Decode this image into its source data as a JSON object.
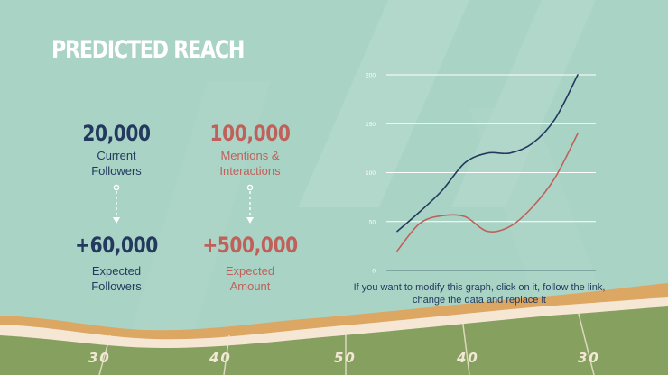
{
  "slide": {
    "title": "PREDICTED REACH",
    "note": "If you want to modify this graph, click on it, follow the link, change the data and replace it"
  },
  "stats": {
    "current_followers": {
      "value": "20,000",
      "label_line1": "Current",
      "label_line2": "Followers"
    },
    "mentions": {
      "value": "100,000",
      "label_line1": "Mentions &",
      "label_line2": "Interactions"
    },
    "expected_followers": {
      "value": "+60,000",
      "label_line1": "Expected",
      "label_line2": "Followers"
    },
    "expected_amount": {
      "value": "+500,000",
      "label_line1": "Expected",
      "label_line2": "Amount"
    }
  },
  "field": {
    "yard_numbers": [
      "30",
      "40",
      "50",
      "40",
      "30"
    ]
  },
  "colors": {
    "background": "#a9d3c5",
    "navy": "#233a5e",
    "coral": "#c0605a",
    "grass": "#86a060",
    "sand": "#dca663",
    "cream": "#f6e6d4"
  },
  "chart_data": {
    "type": "line",
    "ylim": [
      0,
      200
    ],
    "yticks": [
      "0",
      "50",
      "100",
      "150",
      "200"
    ],
    "grid": true,
    "legend": "none",
    "x": [
      0,
      1,
      2,
      3,
      4,
      5,
      6,
      7,
      8
    ],
    "series": [
      {
        "color": "#233a5e",
        "values": [
          40,
          60,
          82,
          110,
          120,
          120,
          130,
          155,
          200
        ]
      },
      {
        "color": "#c0605a",
        "values": [
          20,
          48,
          56,
          55,
          40,
          45,
          65,
          95,
          140
        ]
      }
    ]
  }
}
